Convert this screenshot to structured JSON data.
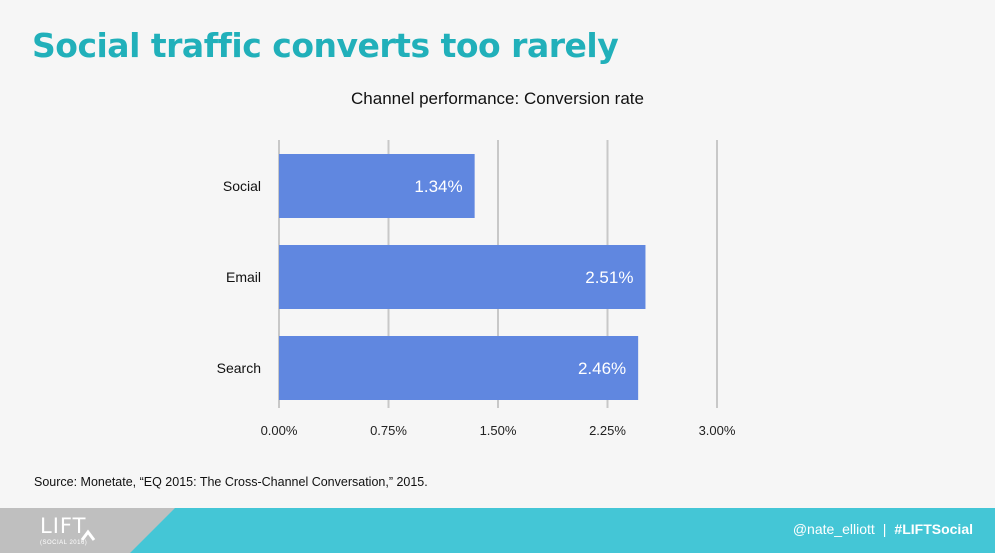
{
  "slide": {
    "headline": "Social traffic converts too rarely",
    "source": "Source: Monetate, “EQ 2015: The Cross-Channel Conversation,” 2015."
  },
  "footer": {
    "logo_text": "LIFT",
    "logo_subtext": "(SOCIAL 2016)",
    "handle": "@nate_elliott",
    "separator": "|",
    "hashtag": "#LIFTSocial"
  },
  "colors": {
    "headline": "#21b0ba",
    "bar": "#6087e0",
    "footer": "#44c6d6",
    "gridline": "#c8c8c8"
  },
  "chart_data": {
    "type": "bar",
    "orientation": "horizontal",
    "title": "Channel performance: Conversion rate",
    "categories": [
      "Social",
      "Email",
      "Search"
    ],
    "values": [
      1.34,
      2.51,
      2.46
    ],
    "data_labels": [
      "1.34%",
      "2.51%",
      "2.46%"
    ],
    "x_ticks": [
      0,
      0.75,
      1.5,
      2.25,
      3.0
    ],
    "x_tick_labels": [
      "0.00%",
      "0.75%",
      "1.50%",
      "2.25%",
      "3.00%"
    ],
    "xlim": [
      0,
      3.0
    ],
    "grid": true,
    "legend": "none",
    "unit": "%"
  }
}
